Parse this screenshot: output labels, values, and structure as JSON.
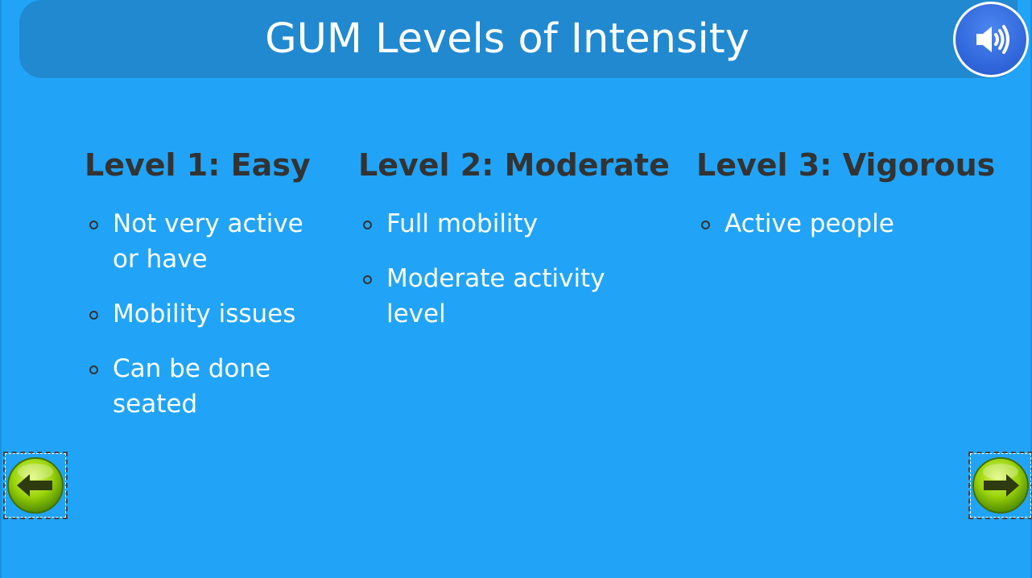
{
  "slide": {
    "title": "GUM Levels of Intensity",
    "audio_icon": "speaker-volume-icon",
    "background_color": "#21a4f7",
    "title_bar_color": "#2189d0"
  },
  "levels": [
    {
      "heading": "Level 1: Easy",
      "items": [
        "Not very active or have",
        "Mobility issues",
        "Can be done seated"
      ]
    },
    {
      "heading": "Level 2: Moderate",
      "items": [
        "Full mobility",
        "Moderate activity level"
      ]
    },
    {
      "heading": "Level 3: Vigorous",
      "items": [
        "Active people"
      ]
    }
  ],
  "navigation": {
    "back_icon": "arrow-left-icon",
    "next_icon": "arrow-right-icon",
    "button_color": "#9ad40a"
  }
}
